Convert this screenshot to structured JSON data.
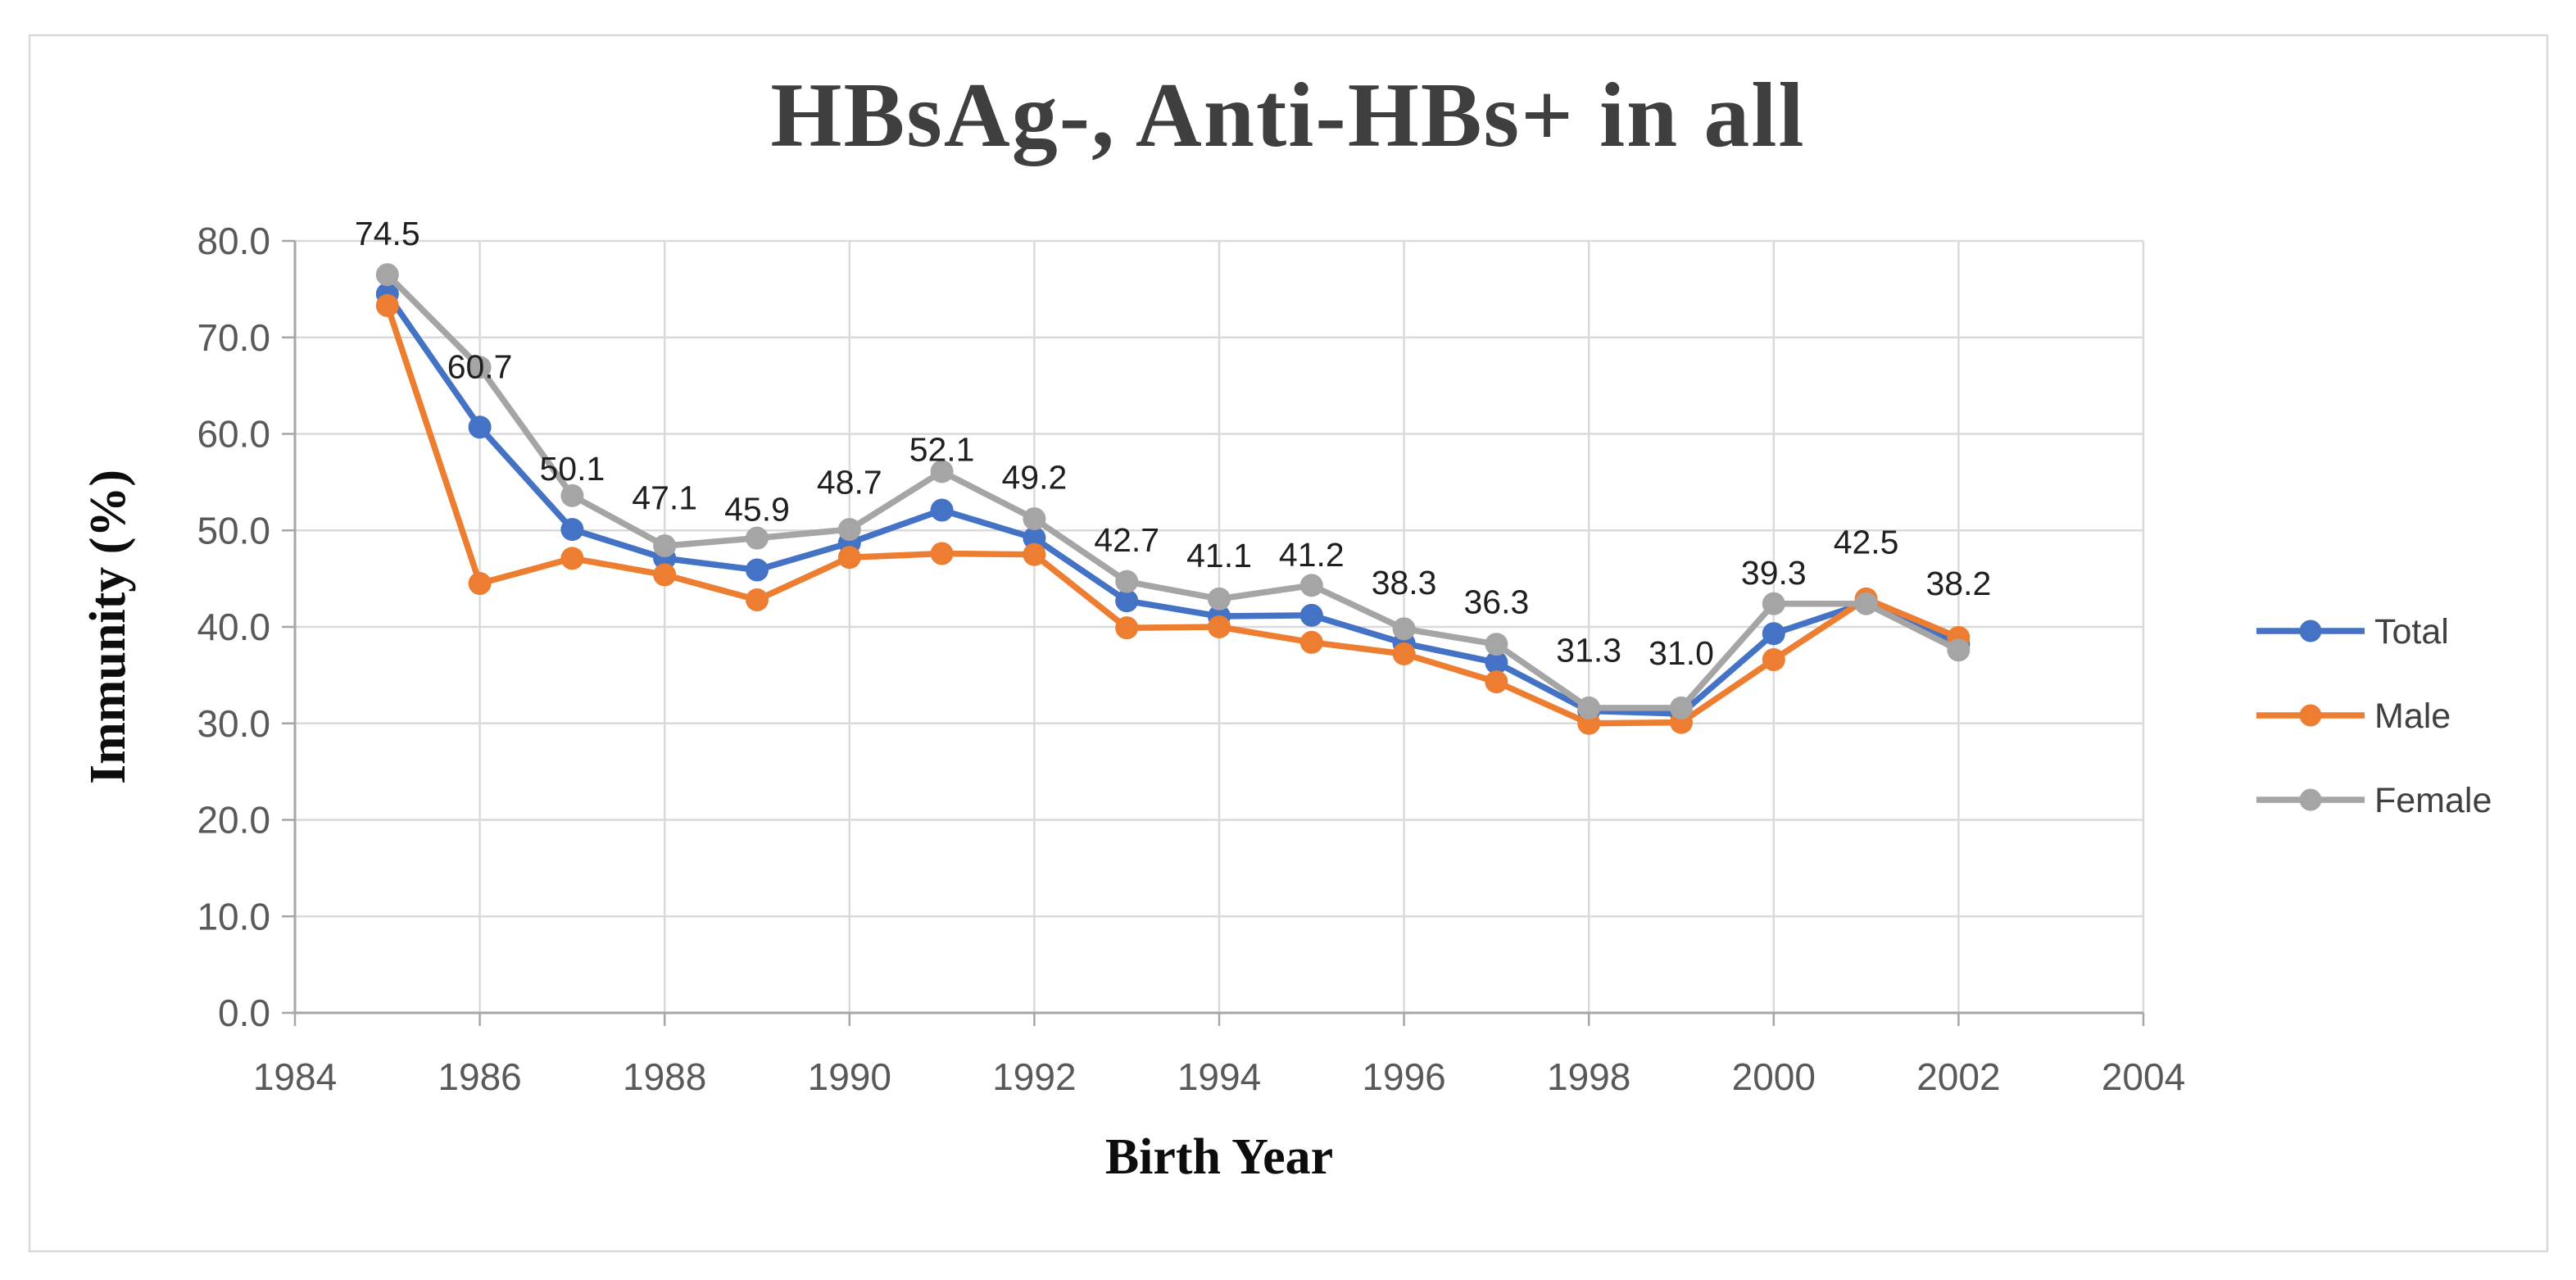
{
  "chart": {
    "title": "HBsAg-, Anti-HBs+ in all",
    "x_axis": {
      "title": "Birth Year",
      "tick_labels": [
        "1984",
        "1986",
        "1988",
        "1990",
        "1992",
        "1994",
        "1996",
        "1998",
        "2000",
        "2002",
        "2004"
      ],
      "range": [
        1984,
        2004
      ]
    },
    "y_axis": {
      "title": "Immunity (%)",
      "tick_labels": [
        "80.0",
        "70.0",
        "60.0",
        "50.0",
        "40.0",
        "30.0",
        "20.0",
        "10.0",
        "0.0"
      ],
      "tick_values": [
        80,
        70,
        60,
        50,
        40,
        30,
        20,
        10,
        0
      ],
      "range": [
        0,
        80
      ]
    },
    "legend": {
      "position": "right",
      "items": [
        {
          "label": "Total",
          "color": "#4472C4"
        },
        {
          "label": "Male",
          "color": "#ED7D31"
        },
        {
          "label": "Female",
          "color": "#A5A5A5"
        }
      ]
    },
    "colors": {
      "grid": "#dadada",
      "axis": "#a6a6a6",
      "title_text": "#3f3f3f",
      "tick_text": "#595959",
      "data_label_text": "#1f1f1f",
      "border": "#d9d9d9"
    }
  },
  "chart_data": {
    "type": "line",
    "title": "HBsAg-, Anti-HBs+ in all",
    "xlabel": "Birth Year",
    "ylabel": "Immunity (%)",
    "x": [
      1985,
      1986,
      1987,
      1988,
      1989,
      1990,
      1991,
      1992,
      1993,
      1994,
      1995,
      1996,
      1997,
      1998,
      1999,
      2000,
      2001,
      2002
    ],
    "xlim": [
      1984,
      2004
    ],
    "ylim": [
      0,
      80
    ],
    "grid": true,
    "legend_position": "right",
    "series": [
      {
        "name": "Total",
        "color": "#4472C4",
        "values": [
          74.5,
          60.7,
          50.1,
          47.1,
          45.9,
          48.7,
          52.1,
          49.2,
          42.7,
          41.1,
          41.2,
          38.3,
          36.3,
          31.3,
          31.0,
          39.3,
          42.5,
          38.2
        ]
      },
      {
        "name": "Male",
        "color": "#ED7D31",
        "values": [
          73.3,
          44.5,
          47.1,
          45.4,
          42.8,
          47.2,
          47.6,
          47.5,
          39.9,
          40.0,
          38.4,
          37.2,
          34.3,
          30.0,
          30.1,
          36.6,
          42.9,
          38.9
        ]
      },
      {
        "name": "Female",
        "color": "#A5A5A5",
        "values": [
          76.5,
          66.9,
          53.6,
          48.4,
          49.2,
          50.1,
          56.1,
          51.2,
          44.7,
          42.9,
          44.3,
          39.8,
          38.2,
          31.6,
          31.6,
          42.4,
          42.4,
          37.6
        ]
      }
    ],
    "data_labels": {
      "series": "Total",
      "values": [
        "74.5",
        "60.7",
        "50.1",
        "47.1",
        "45.9",
        "48.7",
        "52.1",
        "49.2",
        "42.7",
        "41.1",
        "41.2",
        "38.3",
        "36.3",
        "31.3",
        "31.0",
        "39.3",
        "42.5",
        "38.2"
      ]
    }
  }
}
